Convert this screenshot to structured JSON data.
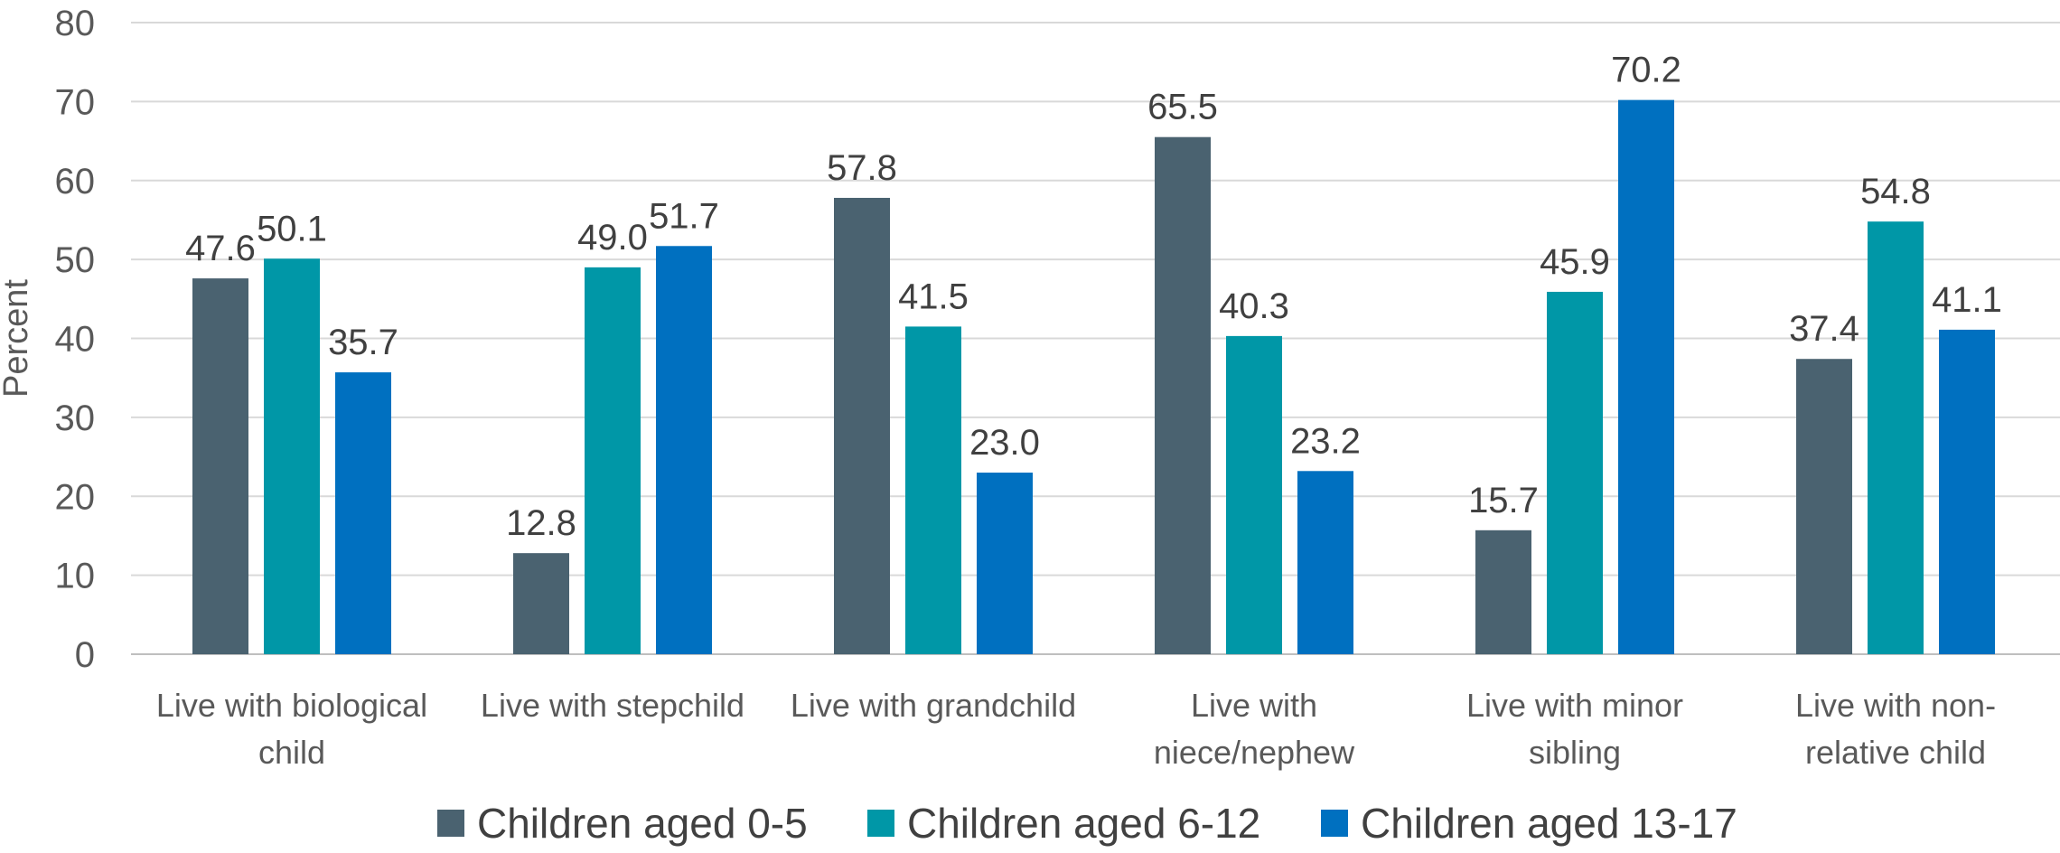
{
  "chart_data": {
    "type": "bar",
    "title": "",
    "xlabel": "",
    "ylabel": "Percent",
    "ylim": [
      0,
      80
    ],
    "yticks": [
      0,
      10,
      20,
      30,
      40,
      50,
      60,
      70,
      80
    ],
    "grid": true,
    "legend_position": "bottom",
    "categories": [
      [
        "Live with biological",
        "child"
      ],
      [
        "Live with stepchild"
      ],
      [
        "Live with grandchild"
      ],
      [
        "Live with",
        "niece/nephew"
      ],
      [
        "Live with minor",
        "sibling"
      ],
      [
        "Live with non-",
        "relative child"
      ]
    ],
    "series": [
      {
        "name": "Children aged 0-5",
        "color": "#4a6270",
        "values": [
          47.6,
          12.8,
          57.8,
          65.5,
          15.7,
          37.4
        ]
      },
      {
        "name": "Children aged 6-12",
        "color": "#0097a7",
        "values": [
          50.1,
          49.0,
          41.5,
          40.3,
          45.9,
          54.8
        ]
      },
      {
        "name": "Children aged 13-17",
        "color": "#0070c0",
        "values": [
          35.7,
          51.7,
          23.0,
          23.2,
          70.2,
          41.1
        ]
      }
    ]
  }
}
